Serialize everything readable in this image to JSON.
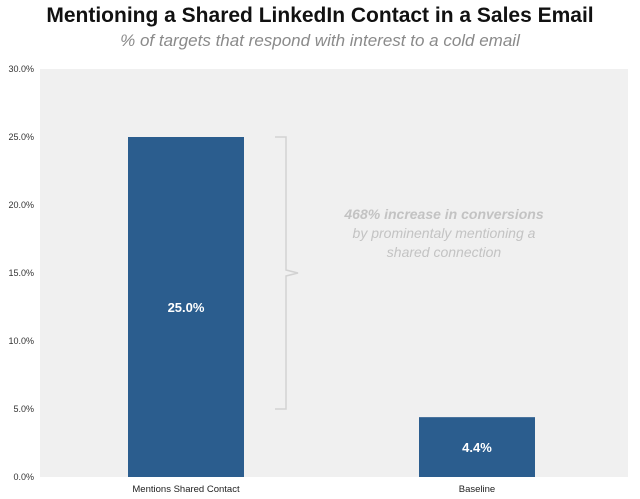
{
  "chart_data": {
    "type": "bar",
    "title": "Mentioning a Shared LinkedIn Contact in a Sales Email",
    "subtitle": "% of targets that respond with interest to a cold email",
    "categories": [
      "Mentions Shared Contact",
      "Baseline"
    ],
    "values": [
      25.0,
      4.4
    ],
    "data_labels": [
      "25.0%",
      "4.4%"
    ],
    "ylim": [
      0,
      30
    ],
    "yticks": [
      0,
      5,
      10,
      15,
      20,
      25,
      30
    ],
    "ytick_labels": [
      "0.0%",
      "5.0%",
      "10.0%",
      "15.0%",
      "20.0%",
      "25.0%",
      "30.0%"
    ],
    "xlabel": "",
    "ylabel": "",
    "grid": false,
    "bar_color": "#2b5d8e",
    "plot_background": "#f0f0f0",
    "annotation": {
      "lines": [
        "468% increase in conversions",
        "by prominentaly mentioning a",
        "shared connection"
      ],
      "color": "#c3c3c3",
      "bracket_from": 5.0,
      "bracket_to": 25.0
    }
  }
}
